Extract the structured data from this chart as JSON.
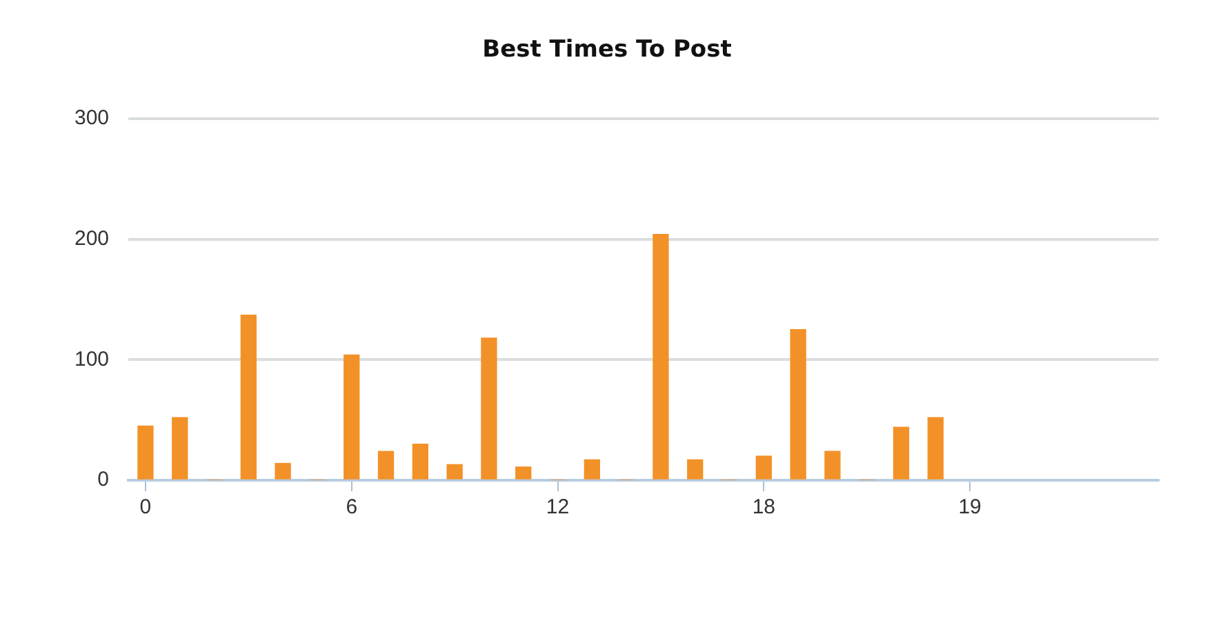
{
  "chart_data": {
    "type": "bar",
    "title": "Best Times To Post",
    "categories": [
      "0",
      null,
      null,
      null,
      null,
      null,
      "6",
      null,
      null,
      null,
      null,
      null,
      "12",
      null,
      null,
      null,
      null,
      null,
      "18",
      null,
      null,
      null,
      null,
      null,
      "19",
      null,
      null,
      null,
      null,
      null
    ],
    "values": [
      45,
      52,
      0,
      137,
      14,
      0,
      104,
      24,
      30,
      13,
      118,
      11,
      0,
      17,
      0,
      204,
      17,
      0,
      20,
      125,
      24,
      0,
      44,
      52,
      null,
      null,
      null,
      null,
      null,
      null
    ],
    "color": "#f39129",
    "ylim": [
      0,
      300
    ],
    "yticks": [
      0,
      100,
      200,
      300
    ],
    "grid": "y",
    "legend": false
  }
}
